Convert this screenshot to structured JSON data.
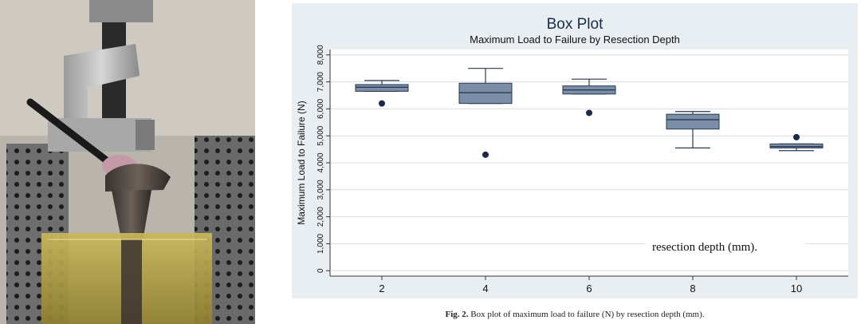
{
  "chart_data": {
    "type": "box",
    "title": "Box Plot",
    "subtitle": "Maximum Load to Failure by Resection Depth",
    "ylabel": "Maximum Load to Failure (N)",
    "xlabel": "",
    "ylim": [
      -200,
      8200
    ],
    "yticks": [
      "0",
      "1,000",
      "2,000",
      "3,000",
      "4,000",
      "5,000",
      "6,000",
      "7,000",
      "8,000"
    ],
    "ytick_values": [
      0,
      1000,
      2000,
      3000,
      4000,
      5000,
      6000,
      7000,
      8000
    ],
    "categories": [
      "2",
      "4",
      "6",
      "8",
      "10"
    ],
    "boxes": [
      {
        "x": "2",
        "whisker_low": 6650,
        "q1": 6650,
        "median": 6800,
        "q3": 6900,
        "whisker_high": 7050,
        "outliers": [
          6200
        ]
      },
      {
        "x": "4",
        "whisker_low": 6200,
        "q1": 6200,
        "median": 6600,
        "q3": 6950,
        "whisker_high": 7500,
        "outliers": [
          4300
        ]
      },
      {
        "x": "6",
        "whisker_low": 6550,
        "q1": 6550,
        "median": 6700,
        "q3": 6850,
        "whisker_high": 7100,
        "outliers": [
          5850
        ]
      },
      {
        "x": "8",
        "whisker_low": 4550,
        "q1": 5250,
        "median": 5600,
        "q3": 5800,
        "whisker_high": 5900,
        "outliers": []
      },
      {
        "x": "10",
        "whisker_low": 4450,
        "q1": 4550,
        "median": 4600,
        "q3": 4700,
        "whisker_high": 4700,
        "outliers": [
          4950
        ]
      }
    ],
    "annotation": "resection depth (mm).",
    "grid": true,
    "box_color": "#7b8ea8",
    "box_edge_color": "#2a3a52",
    "outlier_color": "#1a2a4a",
    "panel_color": "#e9eef2"
  },
  "caption": {
    "label": "Fig. 2.",
    "text": "Box plot of maximum load to failure (N) by resection depth (mm)."
  }
}
